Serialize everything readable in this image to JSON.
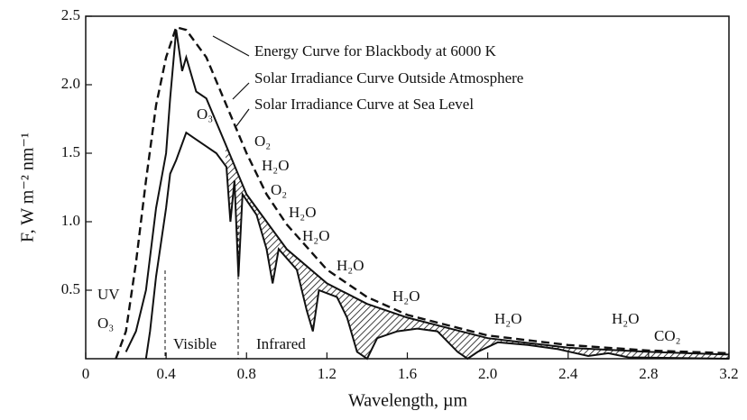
{
  "chart_data": {
    "type": "line",
    "x_label": "Wavelength, µm",
    "y_label": "F,  W m⁻² nm⁻¹",
    "xlim": [
      0,
      3.2
    ],
    "ylim": [
      0,
      2.5
    ],
    "xticks": [
      0,
      0.4,
      0.8,
      1.2,
      1.6,
      {
        "value": 2,
        "label": "2.0"
      },
      2.4,
      2.8,
      3.2
    ],
    "yticks": [
      0.5,
      {
        "value": 1,
        "label": "1.0"
      },
      1.5,
      {
        "value": 2,
        "label": "2.0"
      },
      2.5
    ],
    "series": [
      {
        "name": "Energy Curve for Blackbody at 6000 K",
        "color": "#111",
        "dashed": true,
        "x": [
          0.15,
          0.2,
          0.25,
          0.3,
          0.35,
          0.4,
          0.45,
          0.5,
          0.6,
          0.7,
          0.8,
          0.9,
          1.0,
          1.2,
          1.4,
          1.6,
          2.0,
          2.4,
          2.8,
          3.2
        ],
        "values": [
          0.0,
          0.2,
          0.7,
          1.3,
          1.85,
          2.2,
          2.42,
          2.4,
          2.2,
          1.85,
          1.5,
          1.2,
          0.98,
          0.65,
          0.45,
          0.32,
          0.17,
          0.1,
          0.06,
          0.04
        ]
      },
      {
        "name": "Solar Irradiance Curve Outside Atmosphere",
        "color": "#111",
        "dashed": false,
        "x": [
          0.2,
          0.25,
          0.3,
          0.35,
          0.4,
          0.42,
          0.45,
          0.48,
          0.5,
          0.55,
          0.6,
          0.7,
          0.8,
          0.9,
          1.0,
          1.2,
          1.4,
          1.6,
          2.0,
          2.4,
          2.8,
          3.2
        ],
        "values": [
          0.05,
          0.2,
          0.5,
          1.1,
          1.5,
          1.9,
          2.4,
          2.1,
          2.2,
          1.95,
          1.9,
          1.55,
          1.2,
          1.0,
          0.8,
          0.55,
          0.4,
          0.3,
          0.15,
          0.08,
          0.05,
          0.03
        ]
      },
      {
        "name": "Solar Irradiance Curve at Sea Level",
        "color": "#111",
        "dashed": false,
        "x": [
          0.3,
          0.32,
          0.35,
          0.4,
          0.42,
          0.45,
          0.5,
          0.55,
          0.6,
          0.65,
          0.7,
          0.72,
          0.74,
          0.76,
          0.78,
          0.85,
          0.9,
          0.93,
          0.96,
          1.05,
          1.1,
          1.13,
          1.16,
          1.25,
          1.3,
          1.35,
          1.4,
          1.45,
          1.55,
          1.65,
          1.75,
          1.85,
          1.9,
          1.95,
          2.05,
          2.2,
          2.35,
          2.5,
          2.6,
          2.7,
          3.2
        ],
        "values": [
          0.0,
          0.2,
          0.6,
          1.1,
          1.35,
          1.45,
          1.65,
          1.6,
          1.55,
          1.5,
          1.4,
          1.0,
          1.3,
          0.6,
          1.2,
          1.05,
          0.8,
          0.55,
          0.8,
          0.65,
          0.35,
          0.2,
          0.5,
          0.45,
          0.3,
          0.05,
          0.0,
          0.15,
          0.2,
          0.22,
          0.2,
          0.05,
          0.0,
          0.05,
          0.12,
          0.1,
          0.07,
          0.02,
          0.04,
          0.01,
          0.0
        ]
      }
    ],
    "annotations": [
      "O₃",
      "O₂",
      "H₂O",
      "O₂",
      "H₂O",
      "H₂O",
      "H₂O",
      "H₂O",
      "H₂O",
      "H₂O",
      "CO₂",
      "UV",
      "O₃",
      "Visible",
      "Infrared"
    ]
  }
}
